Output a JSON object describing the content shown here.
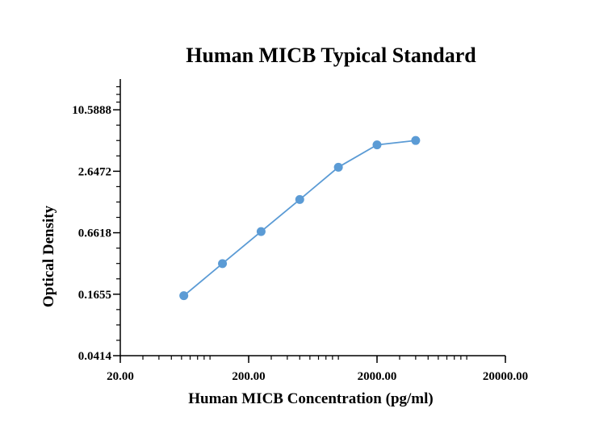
{
  "chart_data": {
    "type": "line",
    "title": "Human MICB Typical Standard",
    "xlabel": "Human MICB Concentration (pg/ml)",
    "ylabel": "Optical Density",
    "x_scale": "log",
    "y_scale": "log",
    "xlim": [
      20,
      20000
    ],
    "ylim": [
      0.0414,
      21.1776
    ],
    "x_ticks": [
      20,
      200,
      2000,
      20000
    ],
    "x_tick_labels": [
      "20.00",
      "200.00",
      "2000.00",
      "20000.00"
    ],
    "y_ticks": [
      0.0414,
      0.1655,
      0.6618,
      2.6472,
      10.5888
    ],
    "y_tick_labels": [
      "0.0414",
      "0.1655",
      "0.6618",
      "2.6472",
      "10.5888"
    ],
    "grid": false,
    "series": [
      {
        "color": "#5b9bd5",
        "x": [
          62.5,
          125,
          250,
          500,
          1000,
          2000,
          4000
        ],
        "y": [
          0.16,
          0.33,
          0.68,
          1.4,
          2.9,
          4.8,
          5.3
        ]
      }
    ]
  }
}
